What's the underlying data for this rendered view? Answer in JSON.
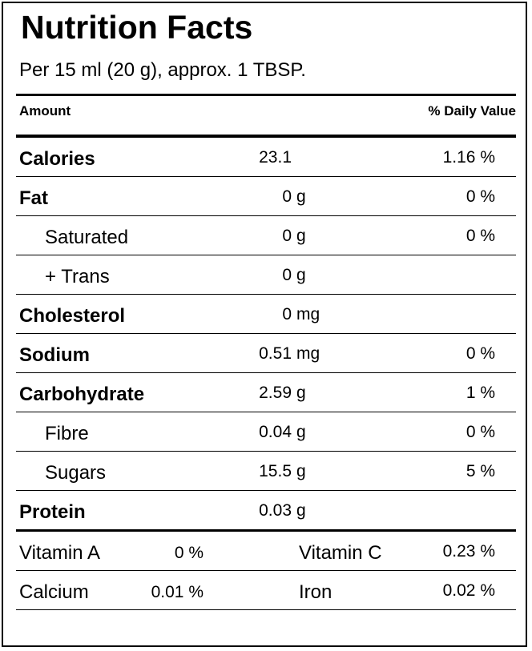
{
  "title": "Nutrition Facts",
  "serving": "Per 15 ml (20 g), approx. 1 TBSP.",
  "header": {
    "amount": "Amount",
    "daily_value": "% Daily Value"
  },
  "nutrients": [
    {
      "name": "Calories",
      "qty": "23.1",
      "unit": "",
      "pct": "1.16 %",
      "style": "main"
    },
    {
      "name": "Fat",
      "qty": "0",
      "unit": "g",
      "pct": "0 %",
      "style": "main"
    },
    {
      "name": "Saturated",
      "qty": "0",
      "unit": "g",
      "pct": "0 %",
      "style": "sub"
    },
    {
      "name": "+ Trans",
      "qty": "0",
      "unit": "g",
      "pct": "",
      "style": "sub"
    },
    {
      "name": "Cholesterol",
      "qty": "0",
      "unit": "mg",
      "pct": "",
      "style": "main"
    },
    {
      "name": "Sodium",
      "qty": "0.51",
      "unit": "mg",
      "pct": "0 %",
      "style": "main"
    },
    {
      "name": "Carbohydrate",
      "qty": "2.59",
      "unit": "g",
      "pct": "1 %",
      "style": "main"
    },
    {
      "name": "Fibre",
      "qty": "0.04",
      "unit": "g",
      "pct": "0 %",
      "style": "sub"
    },
    {
      "name": "Sugars",
      "qty": "15.5",
      "unit": "g",
      "pct": "5 %",
      "style": "sub"
    },
    {
      "name": "Protein",
      "qty": "0.03",
      "unit": "g",
      "pct": "",
      "style": "main"
    }
  ],
  "vitamins": [
    {
      "name1": "Vitamin A",
      "pct1": "0 %",
      "name2": "Vitamin C",
      "pct2": "0.23 %"
    },
    {
      "name1": "Calcium",
      "pct1": "0.01 %",
      "name2": "Iron",
      "pct2": "0.02 %"
    }
  ]
}
